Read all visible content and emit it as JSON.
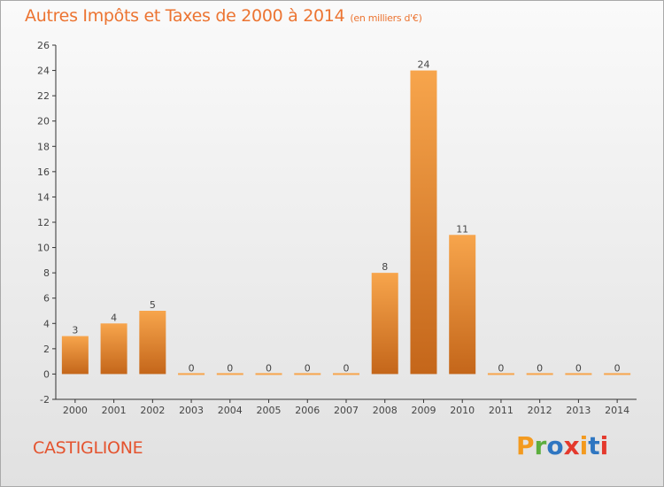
{
  "header": {
    "title": "Autres Impôts et Taxes de 2000 à 2014",
    "subtitle": "(en milliers d'€)"
  },
  "footer": {
    "place_name": "CASTIGLIONE",
    "logo_text": "Proxiti"
  },
  "colors": {
    "title": "#ec7431",
    "place": "#e4532e",
    "bar_light": "#f7a54c",
    "bar_dark": "#c4661a",
    "logo_letters": [
      "#f39a1f",
      "#5cae3e",
      "#2f76c1",
      "#e4392d",
      "#f39a1f",
      "#2f76c1",
      "#e4392d"
    ]
  },
  "chart_data": {
    "type": "bar",
    "categories": [
      "2000",
      "2001",
      "2002",
      "2003",
      "2004",
      "2005",
      "2006",
      "2007",
      "2008",
      "2009",
      "2010",
      "2011",
      "2012",
      "2013",
      "2014"
    ],
    "values": [
      3,
      4,
      5,
      0,
      0,
      0,
      0,
      0,
      8,
      24,
      11,
      0,
      0,
      0,
      0
    ],
    "data_labels": [
      "3",
      "4",
      "5",
      "0",
      "0",
      "0",
      "0",
      "0",
      "8",
      "24",
      "11",
      "0",
      "0",
      "0",
      "0"
    ],
    "ylim": [
      -2,
      26
    ],
    "yticks": [
      -2,
      0,
      2,
      4,
      6,
      8,
      10,
      12,
      14,
      16,
      18,
      20,
      22,
      24,
      26
    ],
    "xlabel": "",
    "ylabel": "",
    "grid": false,
    "legend": "none"
  }
}
